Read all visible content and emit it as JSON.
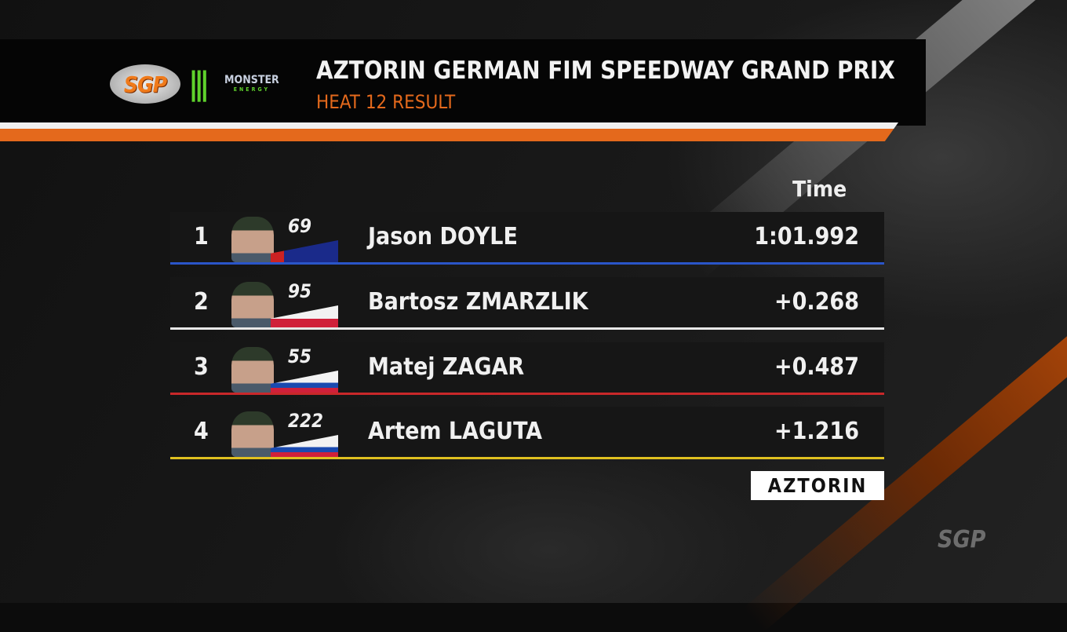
{
  "header": {
    "title": "AZTORIN GERMAN FIM SPEEDWAY GRAND PRIX",
    "subtitle": "HEAT 12 RESULT",
    "logo": "SGP",
    "presenting_sponsor": "MONSTER",
    "presenting_sponsor_sub": "ENERGY",
    "accent": "#e4691c"
  },
  "table": {
    "time_header": "Time",
    "rows": [
      {
        "pos": "1",
        "number": "69",
        "name": "Jason DOYLE",
        "time": "1:01.992",
        "flag": "Australia",
        "line_color": "#2a55c8"
      },
      {
        "pos": "2",
        "number": "95",
        "name": "Bartosz ZMARZLIK",
        "time": "+0.268",
        "flag": "Poland",
        "line_color": "#e8e8e8"
      },
      {
        "pos": "3",
        "number": "55",
        "name": "Matej ZAGAR",
        "time": "+0.487",
        "flag": "Slovenia",
        "line_color": "#c8282a"
      },
      {
        "pos": "4",
        "number": "222",
        "name": "Artem LAGUTA",
        "time": "+1.216",
        "flag": "Russia",
        "line_color": "#e0c020"
      }
    ]
  },
  "sponsor": "AZTORIN",
  "watermark": "SGP"
}
